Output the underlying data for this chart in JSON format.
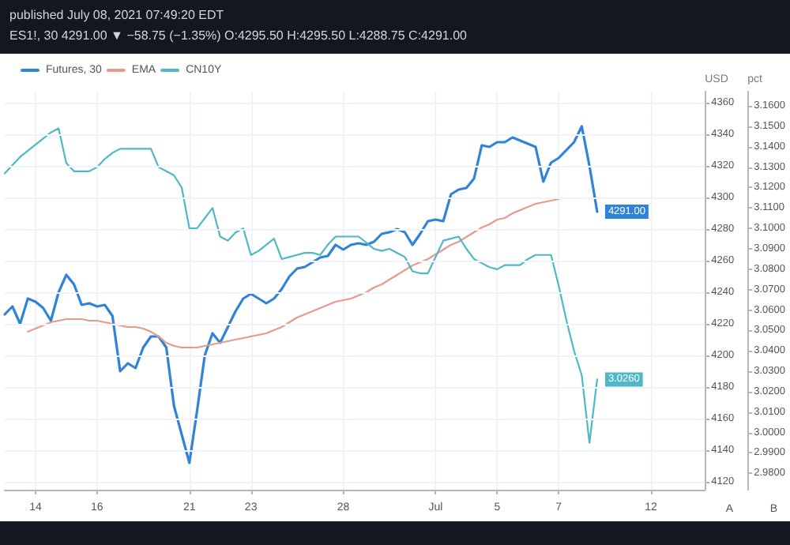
{
  "chart_data": {
    "type": "line",
    "title": "published July 08, 2021 07:49:20 EDT",
    "subtitle": "ES1!, 30 4291.00 ▼ −58.75 (−1.35%) O:4295.50 H:4295.50 L:4288.75 C:4291.00",
    "ylabel": "USD",
    "y2label": "pct",
    "annotations": [
      "A",
      "B"
    ],
    "categories": [
      null,
      null,
      null,
      null,
      "14",
      null,
      null,
      null,
      null,
      null,
      null,
      null,
      "16",
      null,
      null,
      null,
      null,
      null,
      null,
      null,
      null,
      null,
      null,
      null,
      "21",
      null,
      null,
      null,
      null,
      null,
      null,
      null,
      "23",
      null,
      null,
      null,
      null,
      null,
      null,
      null,
      null,
      null,
      null,
      null,
      "28",
      null,
      null,
      null,
      null,
      null,
      null,
      null,
      null,
      null,
      null,
      null,
      "Jul",
      null,
      null,
      null,
      null,
      null,
      null,
      null,
      "5",
      null,
      null,
      null,
      null,
      null,
      null,
      null,
      "7",
      null,
      null,
      null,
      null,
      null,
      null,
      null,
      null,
      null,
      null,
      null,
      "12",
      null,
      null,
      null,
      null,
      null,
      null,
      null
    ],
    "series": [
      {
        "name": "Futures, 30",
        "color": "#2f83d8",
        "values": [
          4226,
          4231,
          4220,
          4236,
          4234,
          4230,
          4222,
          4240,
          4251,
          4245,
          4232,
          4233,
          4231,
          4232,
          4225,
          4190,
          4195,
          4192,
          4205,
          4212,
          4212,
          4205,
          4168,
          4150,
          4132,
          4165,
          4200,
          4214,
          4208,
          4218,
          4228,
          4236,
          4239,
          4236,
          4233,
          4236,
          4242,
          4250,
          4255,
          4256,
          4259,
          4262,
          4263,
          4270,
          4267,
          4270,
          4271,
          4270,
          4272,
          4277,
          4278,
          4280,
          4278,
          4270,
          4277,
          4285,
          4286,
          4285,
          4302,
          4305,
          4306,
          4312,
          4333,
          4332,
          4335,
          4335,
          4338,
          4336,
          4334,
          4332,
          4310,
          4322,
          4325,
          4330,
          4335,
          4345,
          4320,
          4291,
          null,
          null,
          null,
          null,
          null,
          null,
          null,
          null,
          null,
          null,
          null,
          null,
          null,
          null
        ],
        "value_labels": [
          null,
          null,
          null,
          null,
          null,
          null,
          null,
          null,
          null,
          null,
          null,
          null,
          null,
          null,
          null,
          null,
          null,
          null,
          null,
          null,
          null,
          null,
          null,
          null,
          null,
          null,
          null,
          null,
          null,
          null,
          null,
          null,
          null,
          null,
          null,
          null,
          null,
          null,
          null,
          null,
          null,
          null,
          null,
          null,
          null,
          null,
          null,
          null,
          null,
          null,
          null,
          null,
          null,
          null,
          null,
          null,
          null,
          null,
          null,
          null,
          null,
          null,
          null,
          null,
          null,
          null,
          null,
          null,
          null,
          null,
          null,
          null,
          null,
          null,
          null,
          null,
          null,
          "4291.00",
          null,
          null,
          null,
          null,
          null,
          null,
          null,
          null,
          null,
          null,
          null,
          null,
          null,
          null
        ]
      },
      {
        "name": "EMA",
        "color": "#e8998d",
        "values": [
          null,
          null,
          null,
          4215,
          4217,
          4219,
          4221,
          4222,
          4223,
          4223,
          4223,
          4222,
          4222,
          4221,
          4220,
          4219,
          4218,
          4218,
          4217,
          4215,
          4212,
          4208,
          4206,
          4205,
          4205,
          4205,
          4206,
          4207,
          4208,
          4209,
          4210,
          4211,
          4212,
          4213,
          4214,
          4216,
          4218,
          4221,
          4224,
          4226,
          4228,
          4230,
          4232,
          4234,
          4235,
          4236,
          4238,
          4240,
          4243,
          4245,
          4248,
          4251,
          4254,
          4257,
          4259,
          4261,
          4264,
          4267,
          4270,
          4272,
          4275,
          4278,
          4281,
          4283,
          4286,
          4287,
          4290,
          4292,
          4294,
          4296,
          4297,
          4298,
          4299,
          null,
          null,
          null,
          null,
          null,
          null,
          null,
          null,
          null,
          null,
          null,
          null,
          null,
          null,
          null,
          null,
          null,
          null,
          null
        ]
      },
      {
        "name": "CN10Y",
        "color": "#4fb8c8",
        "axis": "y2",
        "values": [
          3.127,
          3.131,
          3.135,
          3.138,
          3.141,
          3.144,
          3.147,
          3.149,
          3.132,
          3.128,
          3.128,
          3.128,
          3.13,
          3.134,
          3.137,
          3.139,
          3.139,
          3.139,
          3.139,
          3.139,
          3.13,
          3.128,
          3.126,
          3.12,
          3.1,
          3.1,
          3.105,
          3.11,
          3.096,
          3.094,
          3.098,
          3.1,
          3.087,
          3.089,
          3.092,
          3.095,
          3.085,
          3.086,
          3.087,
          3.088,
          3.088,
          3.087,
          3.092,
          3.096,
          3.096,
          3.096,
          3.096,
          3.093,
          3.09,
          3.089,
          3.09,
          3.088,
          3.086,
          3.079,
          3.078,
          3.078,
          3.086,
          3.094,
          3.095,
          3.096,
          3.09,
          3.085,
          3.083,
          3.081,
          3.08,
          3.082,
          3.082,
          3.082,
          3.085,
          3.087,
          3.087,
          3.087,
          3.072,
          3.055,
          3.04,
          3.028,
          2.995,
          3.026,
          null,
          null,
          null,
          null,
          null,
          null,
          null,
          null,
          null,
          null,
          null,
          null,
          null,
          null
        ],
        "value_labels": [
          null,
          null,
          null,
          null,
          null,
          null,
          null,
          null,
          null,
          null,
          null,
          null,
          null,
          null,
          null,
          null,
          null,
          null,
          null,
          null,
          null,
          null,
          null,
          null,
          null,
          null,
          null,
          null,
          null,
          null,
          null,
          null,
          null,
          null,
          null,
          null,
          null,
          null,
          null,
          null,
          null,
          null,
          null,
          null,
          null,
          null,
          null,
          null,
          null,
          null,
          null,
          null,
          null,
          null,
          null,
          null,
          null,
          null,
          null,
          null,
          null,
          null,
          null,
          null,
          null,
          null,
          null,
          null,
          null,
          null,
          null,
          null,
          null,
          null,
          null,
          null,
          null,
          "3.0260",
          null,
          null,
          null,
          null,
          null,
          null,
          null,
          null,
          null,
          null,
          null,
          null,
          null,
          null
        ]
      }
    ],
    "ylim": [
      4115,
      4367
    ],
    "yticks": [
      4120,
      4140,
      4160,
      4180,
      4200,
      4220,
      4240,
      4260,
      4280,
      4300,
      4320,
      4340,
      4360
    ],
    "y2lim": [
      2.972,
      3.167
    ],
    "y2ticks": [
      {
        "value": 2.98,
        "label": "2.9800"
      },
      {
        "value": 2.99,
        "label": "2.9900"
      },
      {
        "value": 3.0,
        "label": "3.0000"
      },
      {
        "value": 3.01,
        "label": "3.0100"
      },
      {
        "value": 3.02,
        "label": "3.0200"
      },
      {
        "value": 3.03,
        "label": "3.0300"
      },
      {
        "value": 3.04,
        "label": "3.0400"
      },
      {
        "value": 3.05,
        "label": "3.0500"
      },
      {
        "value": 3.06,
        "label": "3.0600"
      },
      {
        "value": 3.07,
        "label": "3.0700"
      },
      {
        "value": 3.08,
        "label": "3.0800"
      },
      {
        "value": 3.09,
        "label": "3.0900"
      },
      {
        "value": 3.1,
        "label": "3.1000"
      },
      {
        "value": 3.11,
        "label": "3.1100"
      },
      {
        "value": 3.12,
        "label": "3.1200"
      },
      {
        "value": 3.13,
        "label": "3.1300"
      },
      {
        "value": 3.14,
        "label": "3.1400"
      },
      {
        "value": 3.15,
        "label": "3.1500"
      },
      {
        "value": 3.16,
        "label": "3.1600"
      }
    ],
    "grid": true,
    "legend": "top left",
    "marker": "none",
    "line_style": "solid"
  }
}
